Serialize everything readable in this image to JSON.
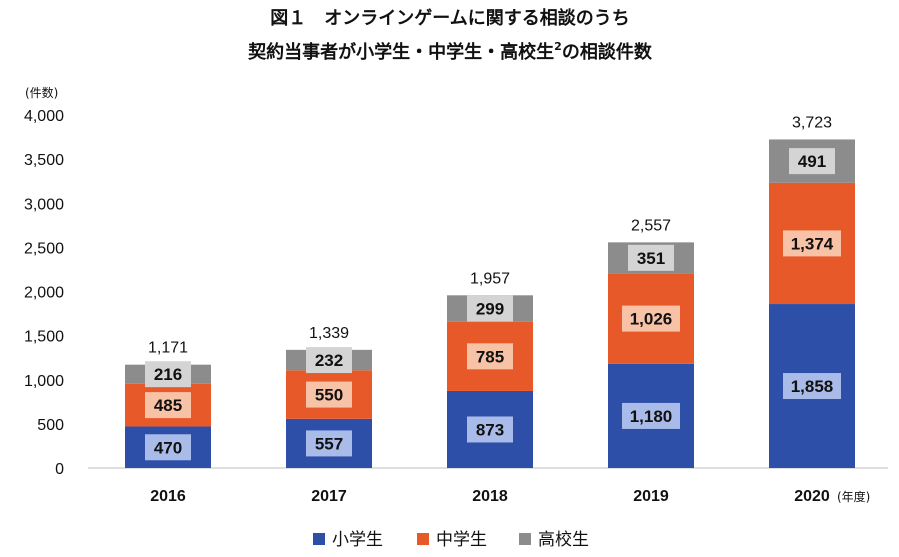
{
  "colors": {
    "elementary": "#2E4FA8",
    "junior_high": "#E8592A",
    "high_school": "#8C8C8C",
    "elementary_label_bg": "#A9BBE8",
    "junior_high_label_bg": "#F7C2A6",
    "high_school_label_bg": "#D4D4D4",
    "axis": "#BFBFBF",
    "text": "#111111"
  },
  "chart_data": {
    "type": "bar",
    "stacked": true,
    "title_line1": "図１　オンラインゲームに関する相談のうち",
    "title_line2": "契約当事者が小学生・中学生・高校生",
    "title_superscript": "2",
    "title_line2_suffix": "の相談件数",
    "ylabel": "(件数)",
    "xlabel": "(年度)",
    "categories": [
      "2016",
      "2017",
      "2018",
      "2019",
      "2020"
    ],
    "series": [
      {
        "name": "小学生",
        "values": [
          470,
          557,
          873,
          1180,
          1858
        ]
      },
      {
        "name": "中学生",
        "values": [
          485,
          550,
          785,
          1026,
          1374
        ]
      },
      {
        "name": "高校生",
        "values": [
          216,
          232,
          299,
          351,
          491
        ]
      }
    ],
    "segment_labels": [
      [
        "470",
        "557",
        "873",
        "1,180",
        "1,858"
      ],
      [
        "485",
        "550",
        "785",
        "1,026",
        "1,374"
      ],
      [
        "216",
        "232",
        "299",
        "351",
        "491"
      ]
    ],
    "totals": [
      1171,
      1339,
      1957,
      2557,
      3723
    ],
    "total_labels": [
      "1,171",
      "1,339",
      "1,957",
      "2,557",
      "3,723"
    ],
    "ylim": [
      0,
      4000
    ],
    "yticks": [
      0,
      500,
      1000,
      1500,
      2000,
      2500,
      3000,
      3500,
      4000
    ],
    "ytick_labels": [
      "0",
      "500",
      "1,000",
      "1,500",
      "2,000",
      "2,500",
      "3,000",
      "3,500",
      "4,000"
    ],
    "grid": false,
    "legend_position": "bottom-center"
  }
}
